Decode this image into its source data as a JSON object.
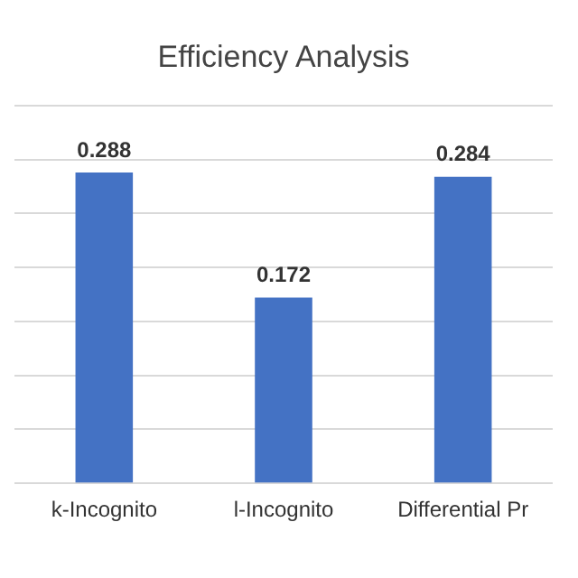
{
  "chart_data": {
    "type": "bar",
    "title": "Efficiency Analysis",
    "categories": [
      "k-Incognito",
      "l-Incognito",
      "Differential Pr"
    ],
    "values": [
      0.288,
      0.172,
      0.284
    ],
    "color": "#4472c4",
    "ylim": [
      0,
      0.35
    ],
    "yticks": [
      {
        "value": 0,
        "label": null
      },
      {
        "value": 0.05,
        "label": null
      },
      {
        "value": 0.1,
        "label": null
      },
      {
        "value": 0.15,
        "label": null
      },
      {
        "value": 0.2,
        "label": null
      },
      {
        "value": 0.25,
        "label": null
      },
      {
        "value": 0.3,
        "label": null
      },
      {
        "value": 0.35,
        "label": null
      }
    ],
    "grid": "y",
    "data_labels": true,
    "tick_labels": "x"
  }
}
